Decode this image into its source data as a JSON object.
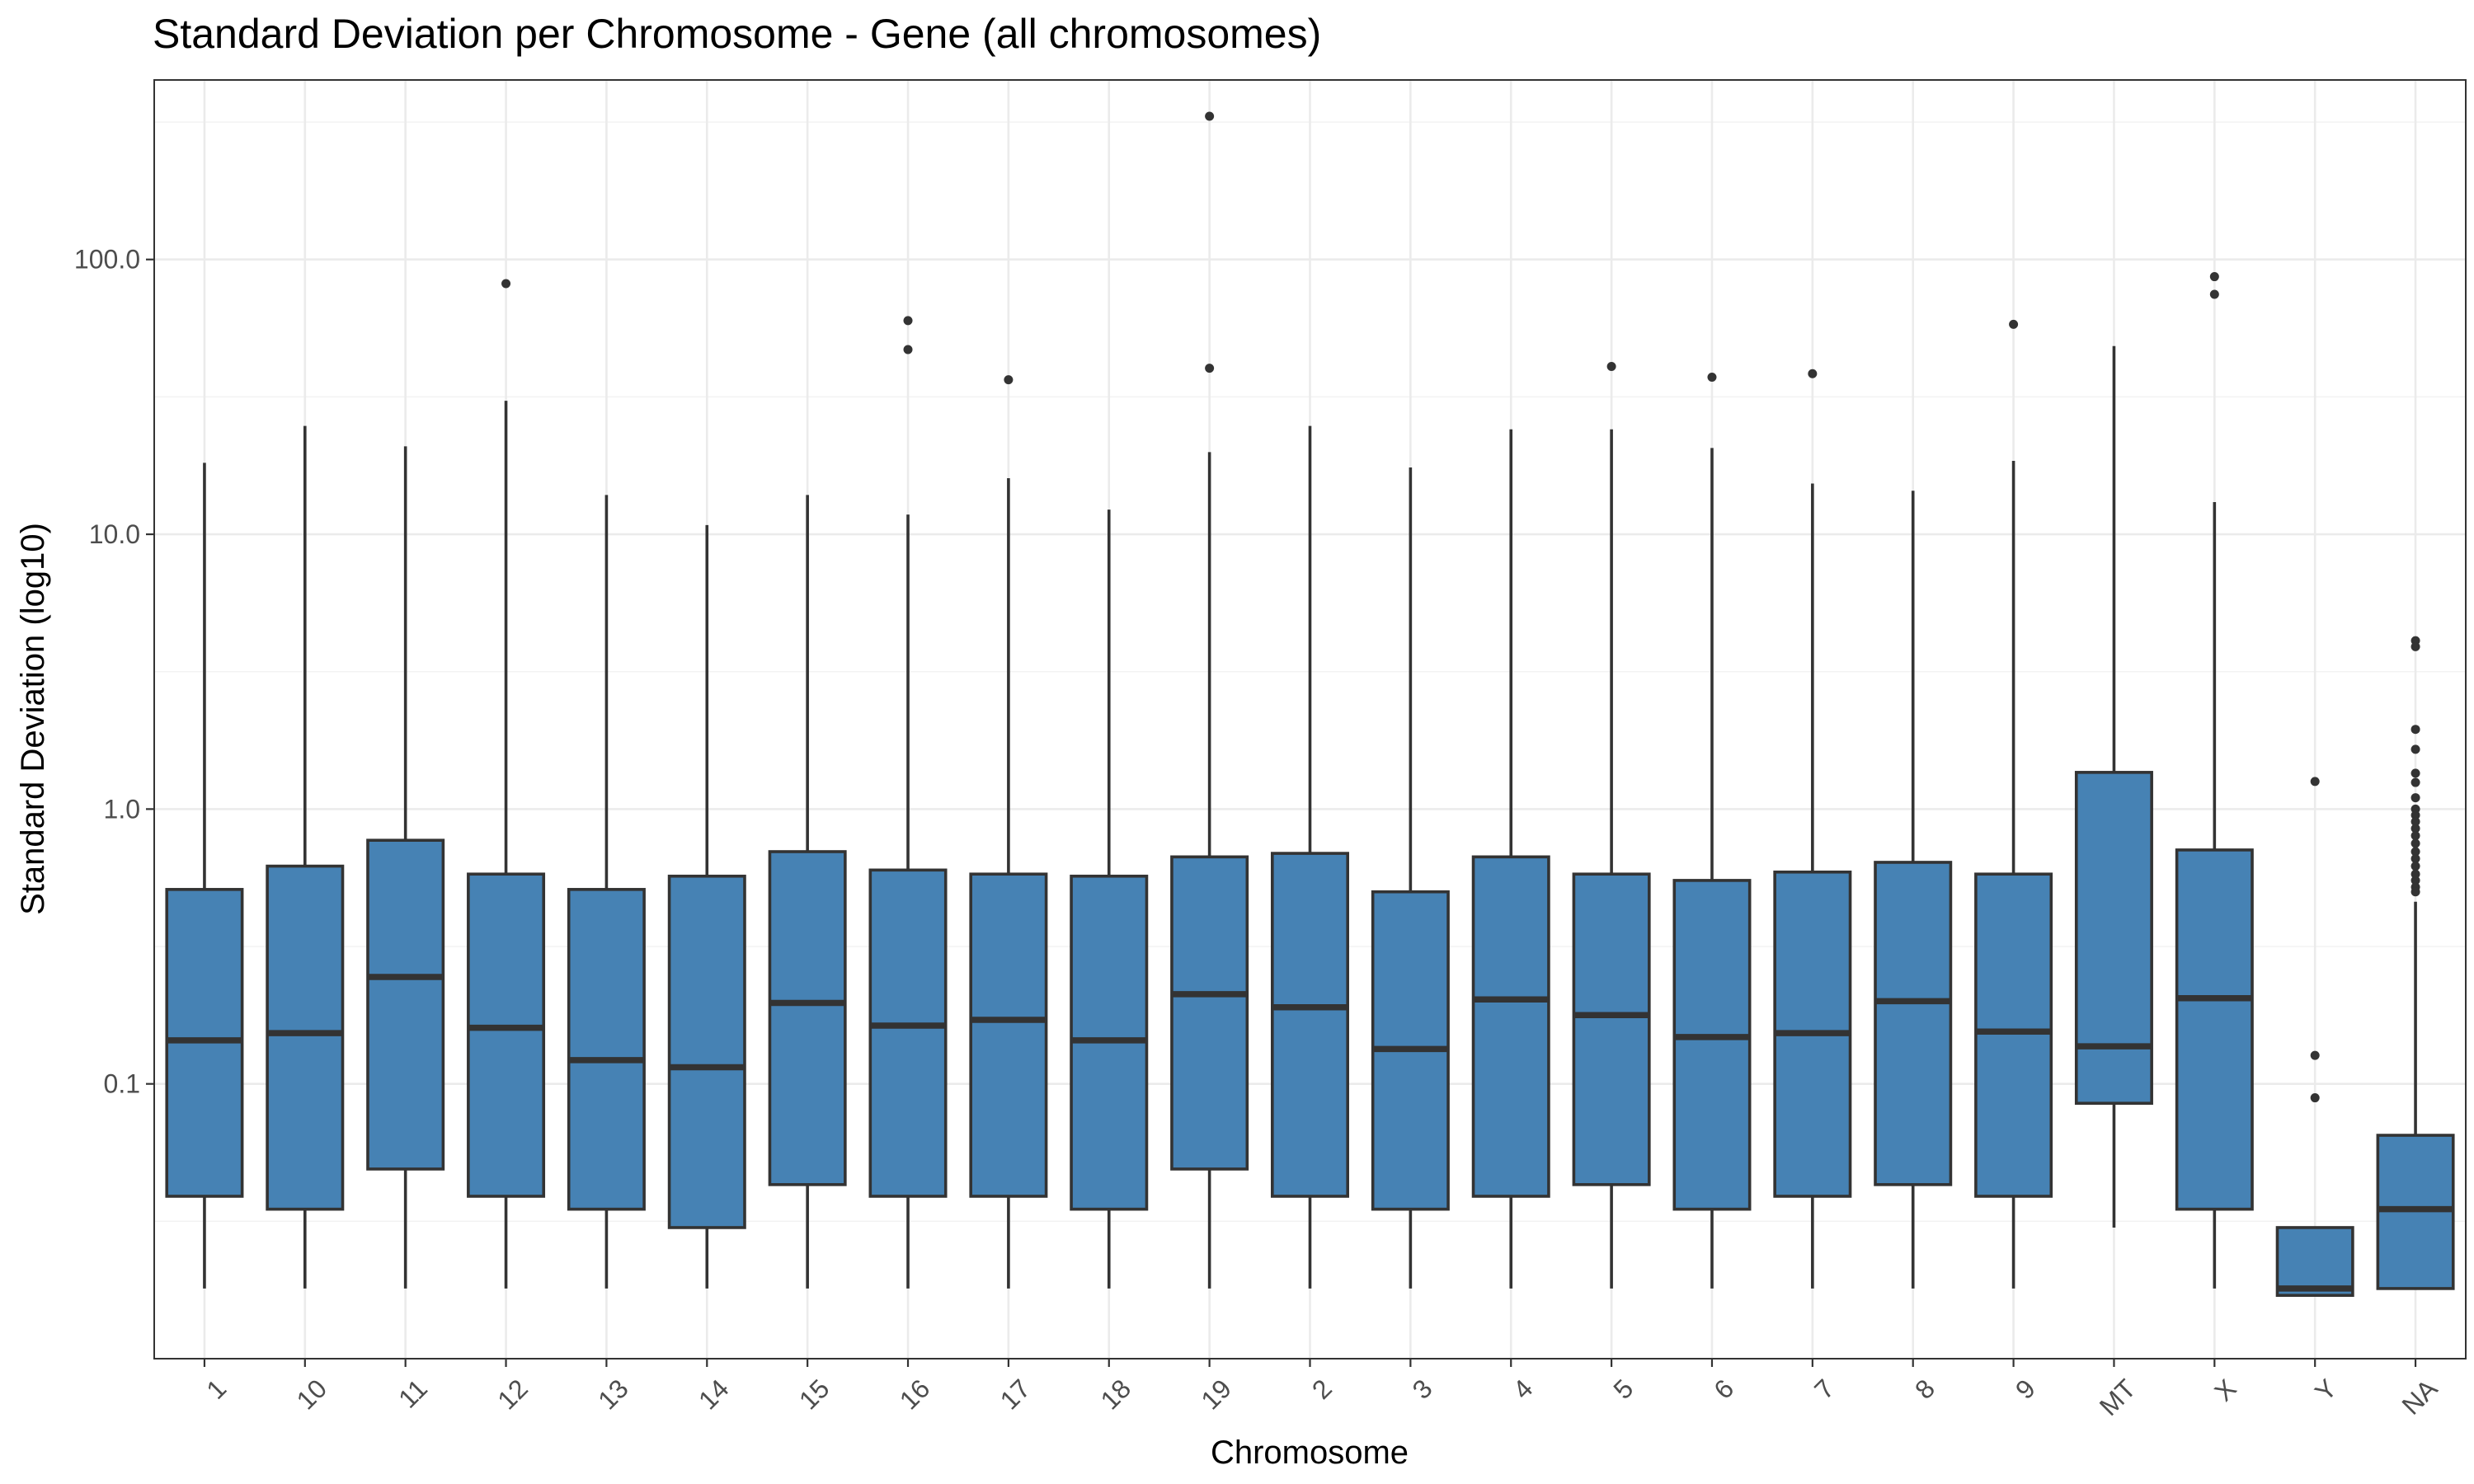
{
  "chart_data": {
    "type": "boxplot",
    "title": "Standard Deviation per Chromosome - Gene (all chromosomes)",
    "xlabel": "Chromosome",
    "ylabel": "Standard Deviation (log10)",
    "y_scale": "log10",
    "ylim": [
      0.01,
      450
    ],
    "y_ticks": [
      0.1,
      1,
      10,
      100
    ],
    "y_tick_labels": [
      "0.1",
      "1.0",
      "10.0",
      "100.0"
    ],
    "grid": true,
    "fill_color": "#4682b4",
    "line_color": "#333333",
    "categories": [
      "1",
      "10",
      "11",
      "12",
      "13",
      "14",
      "15",
      "16",
      "17",
      "18",
      "19",
      "2",
      "3",
      "4",
      "5",
      "6",
      "7",
      "8",
      "9",
      "MT",
      "X",
      "Y",
      "NA"
    ],
    "boxes": [
      {
        "category": "1",
        "whisker_low": 0.018,
        "q1": 0.039,
        "median": 0.144,
        "q3": 0.51,
        "whisker_high": 18.2,
        "outliers": []
      },
      {
        "category": "10",
        "whisker_low": 0.018,
        "q1": 0.035,
        "median": 0.153,
        "q3": 0.62,
        "whisker_high": 24.8,
        "outliers": []
      },
      {
        "category": "11",
        "whisker_low": 0.018,
        "q1": 0.049,
        "median": 0.245,
        "q3": 0.77,
        "whisker_high": 20.9,
        "outliers": []
      },
      {
        "category": "12",
        "whisker_low": 0.018,
        "q1": 0.039,
        "median": 0.16,
        "q3": 0.58,
        "whisker_high": 30.6,
        "outliers": [
          81.7
        ]
      },
      {
        "category": "13",
        "whisker_low": 0.018,
        "q1": 0.035,
        "median": 0.122,
        "q3": 0.51,
        "whisker_high": 13.9,
        "outliers": []
      },
      {
        "category": "14",
        "whisker_low": 0.018,
        "q1": 0.03,
        "median": 0.115,
        "q3": 0.57,
        "whisker_high": 10.8,
        "outliers": []
      },
      {
        "category": "15",
        "whisker_low": 0.018,
        "q1": 0.043,
        "median": 0.197,
        "q3": 0.7,
        "whisker_high": 13.9,
        "outliers": []
      },
      {
        "category": "16",
        "whisker_low": 0.018,
        "q1": 0.039,
        "median": 0.163,
        "q3": 0.6,
        "whisker_high": 11.8,
        "outliers": [
          59.9,
          47
        ]
      },
      {
        "category": "17",
        "whisker_low": 0.018,
        "q1": 0.039,
        "median": 0.171,
        "q3": 0.58,
        "whisker_high": 16,
        "outliers": [
          36.5
        ]
      },
      {
        "category": "18",
        "whisker_low": 0.018,
        "q1": 0.035,
        "median": 0.144,
        "q3": 0.57,
        "whisker_high": 12.3,
        "outliers": []
      },
      {
        "category": "19",
        "whisker_low": 0.018,
        "q1": 0.049,
        "median": 0.212,
        "q3": 0.67,
        "whisker_high": 19.9,
        "outliers": [
          332,
          40.2
        ]
      },
      {
        "category": "2",
        "whisker_low": 0.018,
        "q1": 0.039,
        "median": 0.19,
        "q3": 0.69,
        "whisker_high": 24.8,
        "outliers": []
      },
      {
        "category": "3",
        "whisker_low": 0.018,
        "q1": 0.035,
        "median": 0.134,
        "q3": 0.5,
        "whisker_high": 17.5,
        "outliers": []
      },
      {
        "category": "4",
        "whisker_low": 0.018,
        "q1": 0.039,
        "median": 0.203,
        "q3": 0.67,
        "whisker_high": 24.1,
        "outliers": []
      },
      {
        "category": "5",
        "whisker_low": 0.018,
        "q1": 0.043,
        "median": 0.178,
        "q3": 0.58,
        "whisker_high": 24.1,
        "outliers": [
          40.8
        ]
      },
      {
        "category": "6",
        "whisker_low": 0.018,
        "q1": 0.035,
        "median": 0.148,
        "q3": 0.55,
        "whisker_high": 20.6,
        "outliers": [
          37.3
        ]
      },
      {
        "category": "7",
        "whisker_low": 0.018,
        "q1": 0.039,
        "median": 0.153,
        "q3": 0.59,
        "whisker_high": 15.3,
        "outliers": [
          38.4
        ]
      },
      {
        "category": "8",
        "whisker_low": 0.018,
        "q1": 0.043,
        "median": 0.2,
        "q3": 0.64,
        "whisker_high": 14.4,
        "outliers": []
      },
      {
        "category": "9",
        "whisker_low": 0.018,
        "q1": 0.039,
        "median": 0.155,
        "q3": 0.58,
        "whisker_high": 18.5,
        "outliers": [
          58.1
        ]
      },
      {
        "category": "MT",
        "whisker_low": 0.03,
        "q1": 0.085,
        "median": 0.137,
        "q3": 1.36,
        "whisker_high": 48.4,
        "outliers": []
      },
      {
        "category": "X",
        "whisker_low": 0.018,
        "q1": 0.035,
        "median": 0.205,
        "q3": 0.71,
        "whisker_high": 13.1,
        "outliers": [
          86.6,
          74.7
        ]
      },
      {
        "category": "Y",
        "whisker_low": 0.017,
        "q1": 0.017,
        "median": 0.018,
        "q3": 0.03,
        "whisker_high": 0.03,
        "outliers": [
          1.26,
          0.127,
          0.089
        ]
      },
      {
        "category": "NA",
        "whisker_low": 0.018,
        "q1": 0.018,
        "median": 0.035,
        "q3": 0.065,
        "whisker_high": 0.46,
        "outliers": [
          4.1,
          3.9,
          1.95,
          1.65,
          1.35,
          1.25,
          1.1,
          1.0,
          0.95,
          0.9,
          0.85,
          0.8,
          0.75,
          0.7,
          0.66,
          0.62,
          0.58,
          0.55,
          0.52,
          0.5
        ]
      }
    ]
  }
}
